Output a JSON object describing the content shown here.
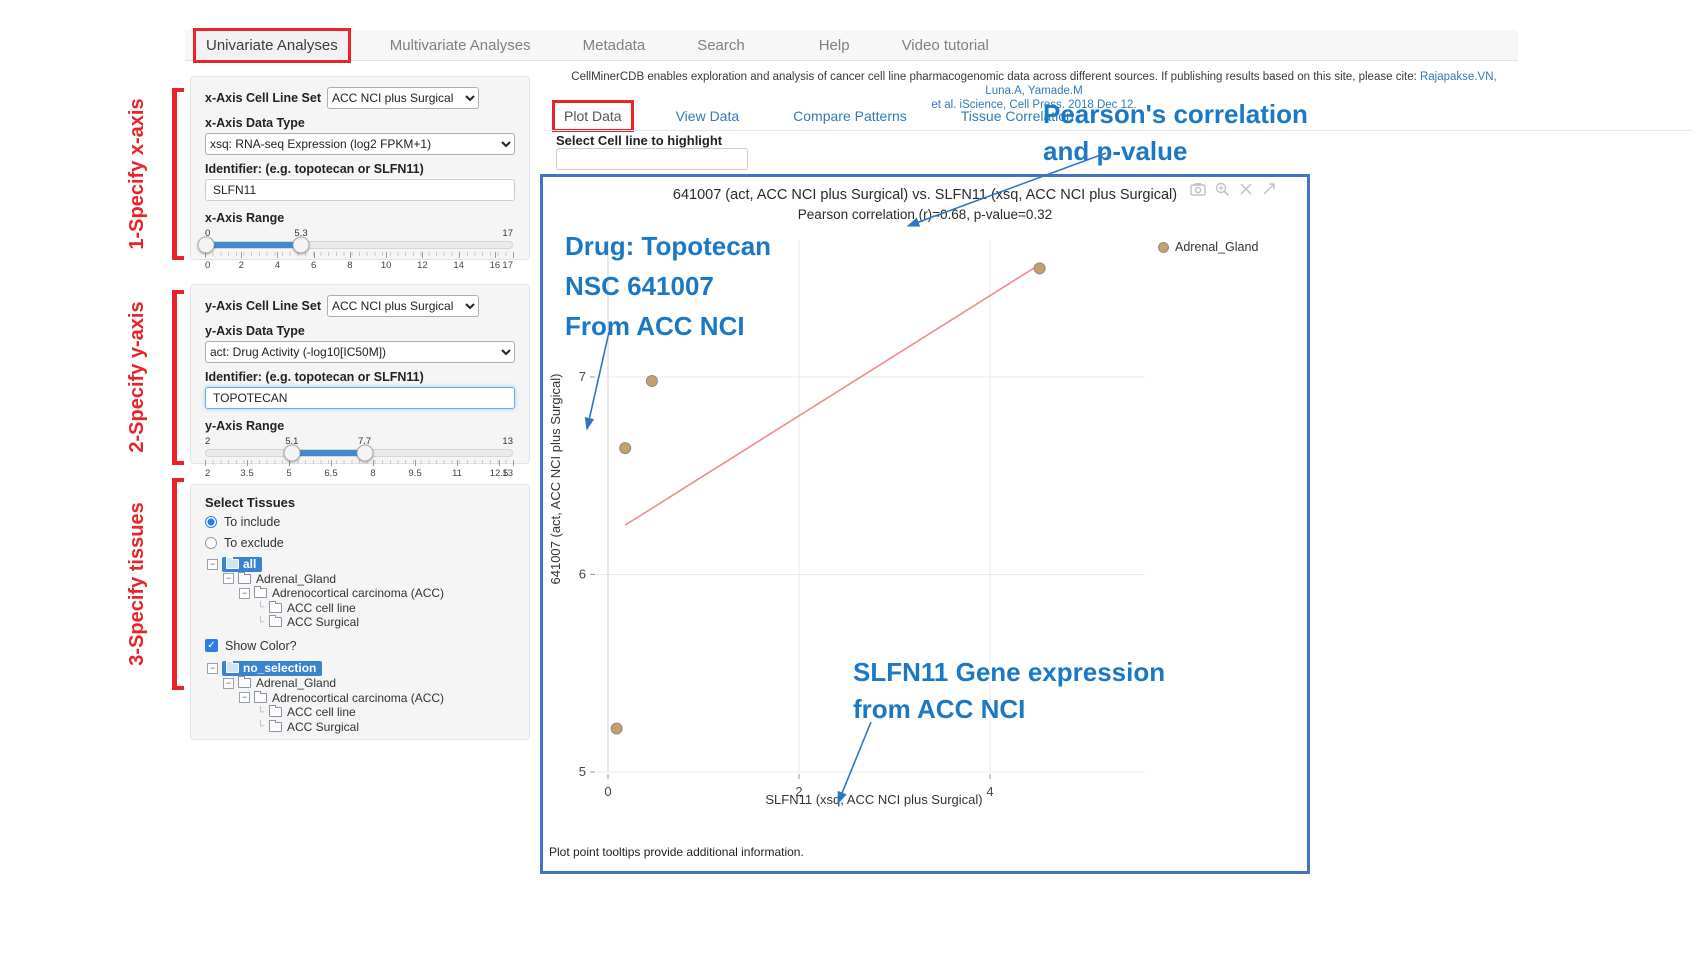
{
  "icons": {
    "expander_minus": "−",
    "tree_leaf_corner": "└",
    "checkbox_check": "✓"
  },
  "colors": {
    "accent_red": "#e8232a",
    "annotation_blue": "#1b78c4",
    "link_blue": "#337ab7",
    "plot_border_blue": "#4472c4",
    "slider_blue": "#428bca",
    "selection_blue": "#3b82d0",
    "point_fill": "#c6a06a",
    "regression_pink": "#ef8a8a"
  },
  "nav": {
    "items": [
      {
        "label": "Univariate Analyses",
        "active": true
      },
      {
        "label": "Multivariate Analyses"
      },
      {
        "label": "Metadata"
      },
      {
        "label": "Search"
      },
      {
        "label": "Help"
      },
      {
        "label": "Video tutorial"
      }
    ]
  },
  "steps": {
    "step1": "1-Specify x-axis",
    "step2": "2-Specify y-axis",
    "step3": "3-Specify tissues"
  },
  "sidebar": {
    "x_axis": {
      "cell_line_set_label": "x-Axis Cell Line Set",
      "cell_line_set_value": "ACC NCI plus Surgical",
      "data_type_label": "x-Axis Data Type",
      "data_type_value": "xsq: RNA-seq Expression (log2 FPKM+1)",
      "identifier_label": "Identifier: (e.g. topotecan or SLFN11)",
      "identifier_value": "SLFN11",
      "range_label": "x-Axis Range",
      "slider": {
        "min": 0,
        "max": 17,
        "handles": [
          0,
          5.3
        ],
        "handle_labels": [
          "0",
          "5.3"
        ],
        "max_label": "17",
        "ticks": [
          0,
          2,
          4,
          6,
          8,
          10,
          12,
          14,
          16,
          17
        ]
      }
    },
    "y_axis": {
      "cell_line_set_label": "y-Axis Cell Line Set",
      "cell_line_set_value": "ACC NCI plus Surgical",
      "data_type_label": "y-Axis Data Type",
      "data_type_value": "act: Drug Activity (-log10[IC50M])",
      "identifier_label": "Identifier: (e.g. topotecan or SLFN11)",
      "identifier_value": "TOPOTECAN",
      "range_label": "y-Axis Range",
      "slider": {
        "min": 2,
        "max": 13,
        "handles": [
          5.1,
          7.7
        ],
        "handle_labels": [
          "5.1",
          "7.7"
        ],
        "min_label": "2",
        "max_label": "13",
        "ticks": [
          2,
          3.5,
          5,
          6.5,
          8,
          9.5,
          11,
          12.5,
          13
        ]
      }
    },
    "tissues": {
      "heading": "Select Tissues",
      "radio_include": "To include",
      "radio_exclude": "To exclude",
      "include_selected": true,
      "show_color_label": "Show Color?",
      "show_color_checked": true,
      "tree1": [
        {
          "label": "all",
          "level": 0,
          "root": true
        },
        {
          "label": "Adrenal_Gland",
          "level": 1
        },
        {
          "label": "Adrenocortical carcinoma (ACC)",
          "level": 2
        },
        {
          "label": "ACC cell line",
          "level": 3,
          "leaf": true
        },
        {
          "label": "ACC Surgical",
          "level": 3,
          "leaf": true
        }
      ],
      "tree2": [
        {
          "label": "no_selection",
          "level": 0,
          "root": true
        },
        {
          "label": "Adrenal_Gland",
          "level": 1
        },
        {
          "label": "Adrenocortical carcinoma (ACC)",
          "level": 2
        },
        {
          "label": "ACC cell line",
          "level": 3,
          "leaf": true
        },
        {
          "label": "ACC Surgical",
          "level": 3,
          "leaf": true
        }
      ]
    }
  },
  "main": {
    "citation_text": "CellMinerCDB enables exploration and analysis of cancer cell line pharmacogenomic data across different sources. If publishing results based on this site, please cite: ",
    "citation_link_authors": "Rajapakse.VN, Luna.A, Yamade.M",
    "citation_link_journal": "et al. iScience, Cell Press. 2018 Dec 12.",
    "tabs": [
      {
        "label": "Plot Data",
        "active": true
      },
      {
        "label": "View Data"
      },
      {
        "label": "Compare Patterns"
      },
      {
        "label": "Tissue Correlation"
      }
    ],
    "highlight_label": "Select Cell line to highlight",
    "highlight_value": "",
    "footnote": "Plot point tooltips provide additional information."
  },
  "annotations": {
    "pearson_line1": "Pearson's correlation",
    "pearson_line2": "and p-value",
    "drug_line1": "Drug: Topotecan",
    "drug_line2": "NSC 641007",
    "drug_line3": "From ACC NCI",
    "gene_line1": "SLFN11 Gene expression",
    "gene_line2": "from ACC NCI"
  },
  "chart_data": {
    "type": "scatter",
    "title": "641007 (act, ACC NCI plus Surgical) vs. SLFN11 (xsq, ACC NCI plus Surgical)",
    "subtitle": "Pearson correlation (r)=0.68, p-value=0.32",
    "xlabel": "SLFN11 (xsq, ACC NCI plus Surgical)",
    "ylabel": "641007 (act, ACC NCI plus Surgical)",
    "x_ticks": [
      0,
      2,
      4
    ],
    "y_ticks": [
      5,
      6,
      7
    ],
    "xlim": [
      -0.13,
      5.6
    ],
    "ylim": [
      5.0,
      7.7
    ],
    "grid": true,
    "legend_position": "right",
    "legend": [
      {
        "label": "Adrenal_Gland",
        "color": "#c6a06a"
      }
    ],
    "series": [
      {
        "name": "Adrenal_Gland",
        "points": [
          [
            0.09,
            5.22
          ],
          [
            0.18,
            6.64
          ],
          [
            0.46,
            6.98
          ],
          [
            4.52,
            7.55
          ]
        ]
      }
    ],
    "regression_line": {
      "x1": 0.18,
      "y1": 6.25,
      "x2": 4.52,
      "y2": 7.57
    },
    "stats": {
      "pearson_r": 0.68,
      "p_value": 0.32
    }
  }
}
